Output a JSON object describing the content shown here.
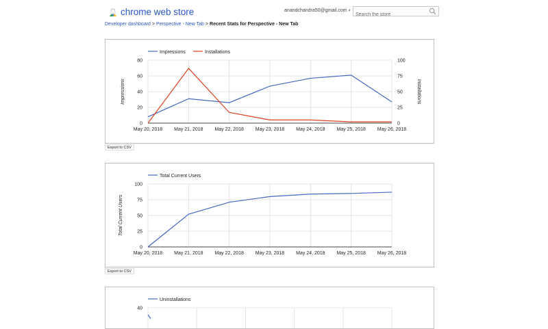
{
  "header": {
    "logo_text": "chrome web store",
    "account": "anandchandra50@gmail.com",
    "search_placeholder": "Search the store"
  },
  "breadcrumb": {
    "items": [
      "Developer dashboard",
      "Perspective - New Tab"
    ],
    "current": "Recent Stats for Perspective - New Tab",
    "separator": ">"
  },
  "export_label": "Export to CSV",
  "colors": {
    "blue": "#4467c4",
    "red": "#dc3f1d",
    "grid": "#e4e4e4",
    "axis": "#444444"
  },
  "chart_data": [
    {
      "type": "line",
      "title": "",
      "x": [
        "May 20, 2018",
        "May 21, 2018",
        "May 22, 2018",
        "May 23, 2018",
        "May 24, 2018",
        "May 25, 2018",
        "May 26, 2018"
      ],
      "series": [
        {
          "name": "Impressions",
          "axis": "left",
          "color": "#4467c4",
          "values": [
            8,
            31,
            26,
            47,
            57,
            61,
            27
          ]
        },
        {
          "name": "Installations",
          "axis": "right",
          "color": "#dc3f1d",
          "values": [
            0,
            87,
            17,
            5,
            5,
            2,
            2
          ]
        }
      ],
      "ylabel": "Impressions",
      "ylabel_right": "Installations",
      "ylim": [
        0,
        80
      ],
      "yticks": [
        0,
        20,
        40,
        60,
        80
      ],
      "ylim_right": [
        0,
        100
      ],
      "yticks_right": [
        0,
        25,
        50,
        75,
        100
      ],
      "legend_position": "top",
      "grid": true
    },
    {
      "type": "line",
      "title": "",
      "x": [
        "May 20, 2018",
        "May 21, 2018",
        "May 22, 2018",
        "May 23, 2018",
        "May 24, 2018",
        "May 25, 2018",
        "May 26, 2018"
      ],
      "series": [
        {
          "name": "Total Current Users",
          "color": "#4467c4",
          "values": [
            0,
            52,
            71,
            80,
            84,
            85,
            87
          ]
        }
      ],
      "ylabel": "Total Current Users",
      "ylim": [
        0,
        100
      ],
      "yticks": [
        0,
        25,
        50,
        75,
        100
      ],
      "legend_position": "top",
      "grid": true
    },
    {
      "type": "line",
      "title": "",
      "series": [
        {
          "name": "Uninstallations",
          "color": "#4467c4",
          "values": []
        }
      ],
      "yticks_visible": [
        40
      ],
      "legend_position": "top",
      "grid": true,
      "note": "chart cut off at bottom of screenshot"
    }
  ]
}
